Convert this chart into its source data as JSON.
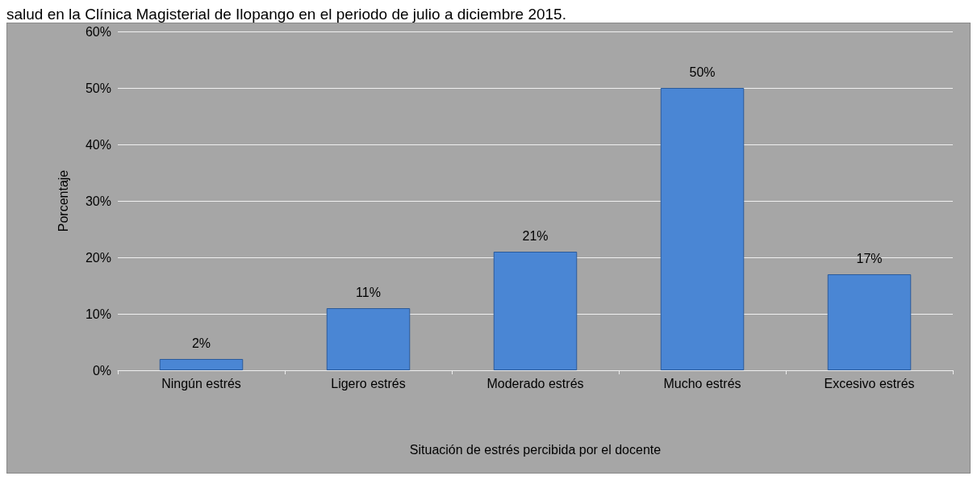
{
  "chart_data": {
    "type": "bar",
    "title": "salud en la Clínica Magisterial de Ilopango en el periodo de julio a diciembre  2015.",
    "xlabel": "Situación de estrés percibida por el docente",
    "ylabel": "Porcentaje",
    "categories": [
      "Ningún estrés",
      "Ligero estrés",
      "Moderado estrés",
      "Mucho estrés",
      "Excesivo estrés"
    ],
    "values": [
      2,
      11,
      21,
      50,
      17
    ],
    "color": "#4a86d4",
    "value_labels": [
      "2%",
      "11%",
      "21%",
      "50%",
      "17%"
    ],
    "ylim": [
      0,
      60
    ],
    "yticks": [
      {
        "value": 0,
        "label": "0%"
      },
      {
        "value": 10,
        "label": "10%"
      },
      {
        "value": 20,
        "label": "20%"
      },
      {
        "value": 30,
        "label": "30%"
      },
      {
        "value": 40,
        "label": "40%"
      },
      {
        "value": 50,
        "label": "50%"
      },
      {
        "value": 60,
        "label": "60%"
      }
    ],
    "grid": "y"
  }
}
